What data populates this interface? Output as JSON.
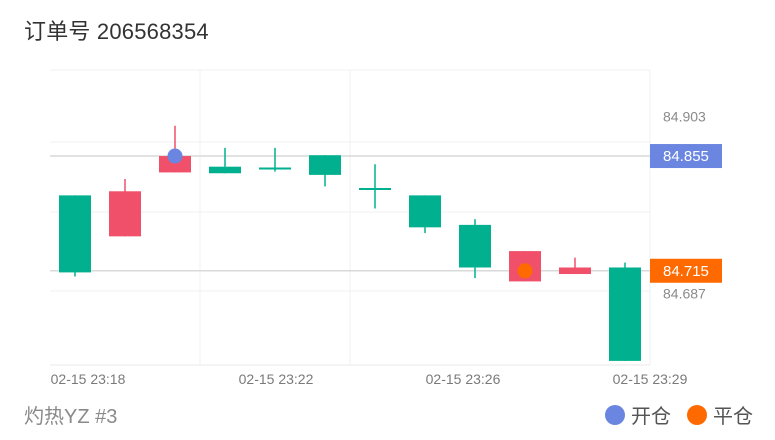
{
  "header": {
    "title": "订单号 206568354"
  },
  "footer": {
    "account": "灼热YZ #3",
    "legend": [
      {
        "label": "开仓",
        "color": "#6b86e0"
      },
      {
        "label": "平仓",
        "color": "#ff6a00"
      }
    ]
  },
  "chart_data": {
    "type": "candlestick",
    "ylim": [
      84.6,
      84.96
    ],
    "x_ticks": [
      "02-15 23:18",
      "02-15 23:22",
      "02-15 23:26",
      "02-15 23:29"
    ],
    "y_ticks": [
      "84.903",
      "84.687"
    ],
    "colors": {
      "up": "#f0506a",
      "down": "#00b08f"
    },
    "candles": [
      {
        "open": 84.807,
        "close": 84.713,
        "high": 84.807,
        "low": 84.708
      },
      {
        "open": 84.757,
        "close": 84.812,
        "high": 84.827,
        "low": 84.757
      },
      {
        "open": 84.835,
        "close": 84.855,
        "high": 84.892,
        "low": 84.835
      },
      {
        "open": 84.842,
        "close": 84.834,
        "high": 84.865,
        "low": 84.834
      },
      {
        "open": 84.841,
        "close": 84.839,
        "high": 84.865,
        "low": 84.836
      },
      {
        "open": 84.856,
        "close": 84.832,
        "high": 84.856,
        "low": 84.818
      },
      {
        "open": 84.816,
        "close": 84.815,
        "high": 84.845,
        "low": 84.791
      },
      {
        "open": 84.807,
        "close": 84.768,
        "high": 84.807,
        "low": 84.761
      },
      {
        "open": 84.771,
        "close": 84.719,
        "high": 84.778,
        "low": 84.706
      },
      {
        "open": 84.702,
        "close": 84.739,
        "high": 84.739,
        "low": 84.702
      },
      {
        "open": 84.711,
        "close": 84.719,
        "high": 84.731,
        "low": 84.711
      },
      {
        "open": 84.719,
        "close": 84.605,
        "high": 84.725,
        "low": 84.605
      }
    ],
    "markers": [
      {
        "kind": "开仓",
        "index": 2,
        "price": 84.855,
        "label": "84.855",
        "color": "#6b86e0"
      },
      {
        "kind": "平仓",
        "index": 9,
        "price": 84.715,
        "label": "84.715",
        "color": "#ff6a00"
      }
    ]
  }
}
